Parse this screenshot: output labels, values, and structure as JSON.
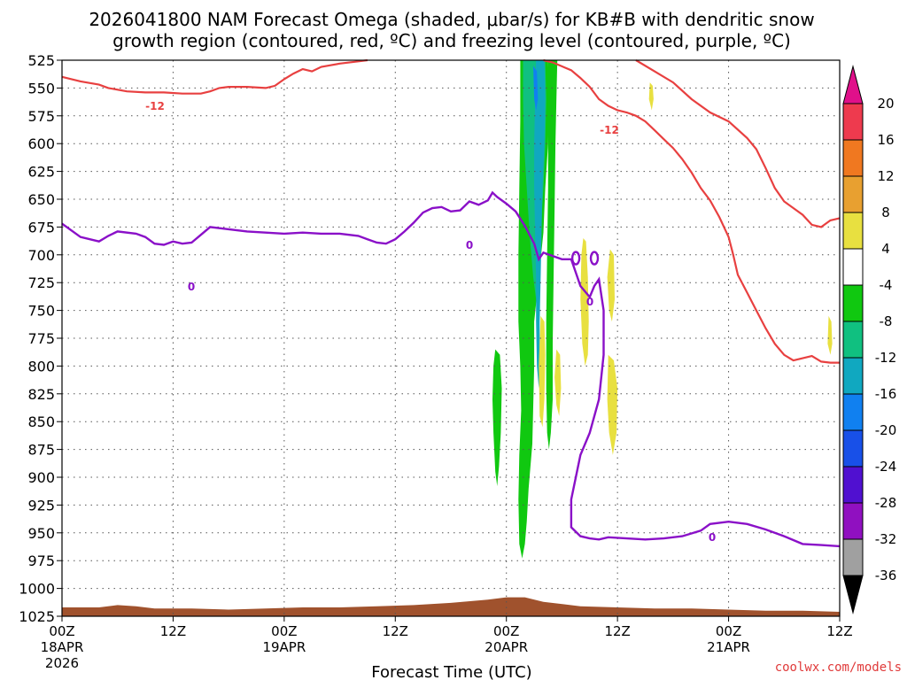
{
  "chart_data": {
    "type": "heatmap",
    "title_line1": "2026041800 NAM Forecast Omega (shaded, μbar/s) for KB#B with dendritic snow",
    "title_line2": "growth region (contoured, red, ºC) and freezing level (contoured, purple, ºC)",
    "xlabel": "Forecast Time (UTC)",
    "credit": "coolwx.com/models",
    "x_range_hours": [
      0,
      84
    ],
    "y_range_hpa": [
      525,
      1025
    ],
    "y_ticks": [
      "525",
      "550",
      "575",
      "600",
      "625",
      "650",
      "675",
      "700",
      "725",
      "750",
      "775",
      "800",
      "825",
      "850",
      "875",
      "900",
      "925",
      "950",
      "975",
      "1000",
      "1025"
    ],
    "x_ticks": [
      {
        "hour": 0,
        "l1": "00Z",
        "l2": "18APR",
        "l3": "2026"
      },
      {
        "hour": 12,
        "l1": "12Z",
        "l2": "",
        "l3": ""
      },
      {
        "hour": 24,
        "l1": "00Z",
        "l2": "19APR",
        "l3": ""
      },
      {
        "hour": 36,
        "l1": "12Z",
        "l2": "",
        "l3": ""
      },
      {
        "hour": 48,
        "l1": "00Z",
        "l2": "20APR",
        "l3": ""
      },
      {
        "hour": 60,
        "l1": "12Z",
        "l2": "",
        "l3": ""
      },
      {
        "hour": 72,
        "l1": "00Z",
        "l2": "21APR",
        "l3": ""
      },
      {
        "hour": 84,
        "l1": "12Z",
        "l2": "",
        "l3": ""
      }
    ],
    "colorbar": {
      "labels": [
        "20",
        "16",
        "12",
        "8",
        "4",
        "-4",
        "-8",
        "-12",
        "-16",
        "-20",
        "-24",
        "-28",
        "-32",
        "-36"
      ],
      "colors": [
        "#ee3a4e",
        "#f07820",
        "#e8a030",
        "#e8e040",
        "#ffffff",
        "#10c810",
        "#10c080",
        "#10a8c0",
        "#1080f0",
        "#1850e8",
        "#5010d0",
        "#9010c0",
        "#a0a0a0"
      ],
      "top_arrow_color": "#e0108a",
      "bottom_arrow_color": "#000000"
    },
    "contour_labels": {
      "dgz_upper": "-12",
      "dgz_right": "-12",
      "freezing_1": "0",
      "freezing_2": "0",
      "freezing_3": "0",
      "freezing_4": "0"
    },
    "dgz_minus12_upper": [
      [
        0,
        540
      ],
      [
        2,
        544
      ],
      [
        4,
        547
      ],
      [
        5,
        550
      ],
      [
        7,
        553
      ],
      [
        9,
        554
      ],
      [
        11,
        554
      ],
      [
        13,
        555
      ],
      [
        15,
        555
      ],
      [
        16,
        553
      ],
      [
        17,
        550
      ],
      [
        18,
        549
      ],
      [
        20,
        549
      ],
      [
        22,
        550
      ],
      [
        23,
        548
      ],
      [
        24,
        542
      ],
      [
        25,
        537
      ],
      [
        26,
        533
      ],
      [
        27,
        535
      ],
      [
        28,
        531
      ],
      [
        30,
        528
      ],
      [
        32,
        526
      ],
      [
        33,
        525
      ]
    ],
    "dgz_minus12_right": [
      [
        52,
        525
      ],
      [
        53,
        527
      ],
      [
        55,
        534
      ],
      [
        56,
        541
      ],
      [
        57,
        549
      ],
      [
        58,
        560
      ],
      [
        59,
        566
      ],
      [
        60,
        570
      ],
      [
        61,
        572
      ],
      [
        62,
        575
      ],
      [
        63,
        580
      ],
      [
        64,
        588
      ],
      [
        65,
        596
      ],
      [
        66,
        604
      ],
      [
        67,
        614
      ],
      [
        68,
        626
      ],
      [
        69,
        640
      ],
      [
        70,
        651
      ],
      [
        71,
        666
      ],
      [
        72,
        684
      ],
      [
        72.5,
        700
      ],
      [
        73,
        718
      ],
      [
        74,
        734
      ],
      [
        75,
        750
      ],
      [
        76,
        766
      ],
      [
        77,
        780
      ],
      [
        78,
        790
      ],
      [
        79,
        795
      ],
      [
        80,
        793
      ],
      [
        81,
        791
      ],
      [
        82,
        796
      ],
      [
        83,
        797
      ],
      [
        84,
        797
      ]
    ],
    "dgz_minus12_far": [
      [
        62,
        525
      ],
      [
        64,
        535
      ],
      [
        66,
        545
      ],
      [
        68,
        560
      ],
      [
        70,
        572
      ],
      [
        72,
        580
      ],
      [
        74,
        595
      ],
      [
        75,
        605
      ],
      [
        76,
        622
      ],
      [
        77,
        640
      ],
      [
        78,
        652
      ],
      [
        80,
        664
      ],
      [
        81,
        673
      ],
      [
        82,
        675
      ],
      [
        83,
        669
      ],
      [
        84,
        667
      ]
    ],
    "freezing_level": [
      [
        0,
        672
      ],
      [
        2,
        684
      ],
      [
        4,
        688
      ],
      [
        5,
        683
      ],
      [
        6,
        679
      ],
      [
        8,
        681
      ],
      [
        9,
        684
      ],
      [
        10,
        690
      ],
      [
        11,
        691
      ],
      [
        12,
        688
      ],
      [
        13,
        690
      ],
      [
        14,
        689
      ],
      [
        15,
        682
      ],
      [
        16,
        675
      ],
      [
        18,
        677
      ],
      [
        20,
        679
      ],
      [
        22,
        680
      ],
      [
        24,
        681
      ],
      [
        26,
        680
      ],
      [
        28,
        681
      ],
      [
        30,
        681
      ],
      [
        32,
        683
      ],
      [
        33,
        686
      ],
      [
        34,
        689
      ],
      [
        35,
        690
      ],
      [
        36,
        686
      ],
      [
        37,
        679
      ],
      [
        38,
        671
      ],
      [
        39,
        662
      ],
      [
        40,
        658
      ],
      [
        41,
        657
      ],
      [
        42,
        661
      ],
      [
        43,
        660
      ],
      [
        44,
        652
      ],
      [
        45,
        655
      ],
      [
        46,
        651
      ],
      [
        46.5,
        644
      ],
      [
        47,
        648
      ],
      [
        48,
        654
      ],
      [
        49,
        661
      ],
      [
        50,
        674
      ],
      [
        51,
        690
      ],
      [
        51.5,
        704
      ],
      [
        52,
        698
      ],
      [
        53,
        701
      ],
      [
        54,
        704
      ],
      [
        55,
        704
      ],
      [
        55.5,
        716
      ],
      [
        56,
        728
      ],
      [
        57,
        738
      ],
      [
        57.5,
        728
      ],
      [
        58,
        722
      ],
      [
        58.5,
        750
      ],
      [
        58.5,
        790
      ],
      [
        58,
        830
      ],
      [
        57,
        860
      ],
      [
        56,
        880
      ],
      [
        55.5,
        900
      ],
      [
        55,
        920
      ],
      [
        55,
        945
      ],
      [
        56,
        953
      ],
      [
        57,
        955
      ],
      [
        58,
        956
      ],
      [
        59,
        954
      ],
      [
        61,
        955
      ],
      [
        63,
        956
      ],
      [
        65,
        955
      ],
      [
        67,
        953
      ],
      [
        69,
        948
      ],
      [
        70,
        942
      ],
      [
        72,
        940
      ],
      [
        74,
        942
      ],
      [
        76,
        947
      ],
      [
        78,
        953
      ],
      [
        80,
        960
      ],
      [
        82,
        961
      ],
      [
        84,
        962
      ]
    ],
    "freezing_small_rings": [
      {
        "x": 55.5,
        "y": 703
      },
      {
        "x": 57.5,
        "y": 703
      }
    ],
    "terrain_top_hpa": [
      [
        0,
        1017
      ],
      [
        4,
        1017
      ],
      [
        6,
        1015
      ],
      [
        8,
        1016
      ],
      [
        10,
        1018
      ],
      [
        14,
        1018
      ],
      [
        18,
        1019
      ],
      [
        22,
        1018
      ],
      [
        26,
        1017
      ],
      [
        30,
        1017
      ],
      [
        34,
        1016
      ],
      [
        38,
        1015
      ],
      [
        42,
        1013
      ],
      [
        46,
        1010
      ],
      [
        48,
        1008
      ],
      [
        50,
        1008
      ],
      [
        52,
        1012
      ],
      [
        56,
        1016
      ],
      [
        60,
        1017
      ],
      [
        64,
        1018
      ],
      [
        68,
        1018
      ],
      [
        72,
        1019
      ],
      [
        76,
        1020
      ],
      [
        80,
        1020
      ],
      [
        84,
        1021
      ]
    ],
    "omega_shading": [
      {
        "level": "-8",
        "color": "#10c810",
        "poly": [
          [
            49.5,
            525
          ],
          [
            52.5,
            525
          ],
          [
            52.6,
            560
          ],
          [
            52.5,
            600
          ],
          [
            52.2,
            640
          ],
          [
            52,
            680
          ],
          [
            51.5,
            720
          ],
          [
            51,
            760
          ],
          [
            51,
            800
          ],
          [
            50.8,
            870
          ],
          [
            50.4,
            910
          ],
          [
            50.2,
            940
          ],
          [
            50,
            960
          ],
          [
            49.7,
            973
          ],
          [
            49.4,
            960
          ],
          [
            49.3,
            920
          ],
          [
            49.4,
            880
          ],
          [
            49.6,
            840
          ],
          [
            49.5,
            800
          ],
          [
            49.3,
            760
          ],
          [
            49.3,
            700
          ],
          [
            49.4,
            640
          ],
          [
            49.5,
            580
          ]
        ]
      },
      {
        "level": "-8",
        "color": "#10c810",
        "poly": [
          [
            52.5,
            525
          ],
          [
            53.5,
            525
          ],
          [
            53.4,
            560
          ],
          [
            53.3,
            600
          ],
          [
            53.2,
            660
          ],
          [
            53.1,
            720
          ],
          [
            53,
            780
          ],
          [
            53,
            830
          ],
          [
            52.8,
            860
          ],
          [
            52.6,
            875
          ],
          [
            52.4,
            860
          ],
          [
            52.3,
            820
          ],
          [
            52.3,
            760
          ],
          [
            52.4,
            700
          ],
          [
            52.5,
            640
          ],
          [
            52.5,
            580
          ]
        ]
      },
      {
        "level": "-8",
        "color": "#10c810",
        "poly": [
          [
            46.8,
            785
          ],
          [
            47.3,
            790
          ],
          [
            47.5,
            820
          ],
          [
            47.4,
            860
          ],
          [
            47.2,
            890
          ],
          [
            47.0,
            908
          ],
          [
            46.8,
            895
          ],
          [
            46.6,
            860
          ],
          [
            46.5,
            830
          ],
          [
            46.6,
            800
          ]
        ]
      },
      {
        "level": "-8",
        "color": "#10c810",
        "poly": [
          [
            50.2,
            810
          ],
          [
            50.5,
            830
          ],
          [
            50.6,
            880
          ],
          [
            50.3,
            900
          ],
          [
            50.1,
            880
          ],
          [
            50.0,
            840
          ]
        ]
      },
      {
        "level": "-12",
        "color": "#10c080",
        "poly": [
          [
            49.8,
            525
          ],
          [
            52.2,
            525
          ],
          [
            52.3,
            560
          ],
          [
            52.2,
            600
          ],
          [
            52.0,
            640
          ],
          [
            51.7,
            680
          ],
          [
            51.4,
            720
          ],
          [
            51.2,
            740
          ],
          [
            50.9,
            720
          ],
          [
            50.5,
            680
          ],
          [
            50.2,
            640
          ],
          [
            49.9,
            600
          ],
          [
            49.8,
            560
          ]
        ]
      },
      {
        "level": "-16",
        "color": "#10a8c0",
        "poly": [
          [
            51.2,
            525
          ],
          [
            52.1,
            525
          ],
          [
            52.2,
            560
          ],
          [
            52.1,
            600
          ],
          [
            51.9,
            640
          ],
          [
            51.8,
            680
          ],
          [
            51.7,
            720
          ],
          [
            51.6,
            760
          ],
          [
            51.6,
            800
          ],
          [
            51.5,
            820
          ],
          [
            51.3,
            800
          ],
          [
            51.2,
            760
          ],
          [
            51.2,
            720
          ],
          [
            51.1,
            680
          ],
          [
            51.0,
            640
          ],
          [
            51.0,
            600
          ],
          [
            51.1,
            560
          ]
        ]
      },
      {
        "level": "-20",
        "color": "#1080f0",
        "poly": [
          [
            50.9,
            530
          ],
          [
            51.3,
            535
          ],
          [
            51.4,
            560
          ],
          [
            51.2,
            570
          ],
          [
            51.0,
            560
          ]
        ]
      },
      {
        "level": "4",
        "color": "#e8e040",
        "poly": [
          [
            56.3,
            685
          ],
          [
            56.6,
            688
          ],
          [
            56.8,
            720
          ],
          [
            56.9,
            760
          ],
          [
            56.8,
            790
          ],
          [
            56.5,
            800
          ],
          [
            56.2,
            780
          ],
          [
            56.0,
            740
          ],
          [
            56.1,
            700
          ]
        ]
      },
      {
        "level": "4",
        "color": "#e8e040",
        "poly": [
          [
            53.4,
            785
          ],
          [
            53.8,
            790
          ],
          [
            53.9,
            820
          ],
          [
            53.7,
            845
          ],
          [
            53.4,
            835
          ],
          [
            53.2,
            810
          ]
        ]
      },
      {
        "level": "4",
        "color": "#e8e040",
        "poly": [
          [
            51.7,
            755
          ],
          [
            52.1,
            760
          ],
          [
            52.2,
            790
          ],
          [
            52.1,
            830
          ],
          [
            51.9,
            855
          ],
          [
            51.6,
            845
          ],
          [
            51.5,
            800
          ]
        ]
      },
      {
        "level": "4",
        "color": "#e8e040",
        "poly": [
          [
            59.2,
            695
          ],
          [
            59.6,
            700
          ],
          [
            59.7,
            740
          ],
          [
            59.4,
            760
          ],
          [
            59.1,
            750
          ],
          [
            58.9,
            720
          ]
        ]
      },
      {
        "level": "4",
        "color": "#e8e040",
        "poly": [
          [
            59.0,
            790
          ],
          [
            59.6,
            795
          ],
          [
            60.0,
            820
          ],
          [
            59.9,
            860
          ],
          [
            59.5,
            880
          ],
          [
            59.1,
            860
          ],
          [
            58.9,
            830
          ]
        ]
      },
      {
        "level": "4",
        "color": "#e8e040",
        "poly": [
          [
            63.5,
            545
          ],
          [
            63.8,
            548
          ],
          [
            63.9,
            560
          ],
          [
            63.7,
            570
          ],
          [
            63.4,
            560
          ]
        ]
      },
      {
        "level": "4",
        "color": "#e8e040",
        "poly": [
          [
            82.8,
            755
          ],
          [
            83.1,
            760
          ],
          [
            83.2,
            780
          ],
          [
            83.0,
            790
          ],
          [
            82.7,
            780
          ]
        ]
      }
    ]
  }
}
